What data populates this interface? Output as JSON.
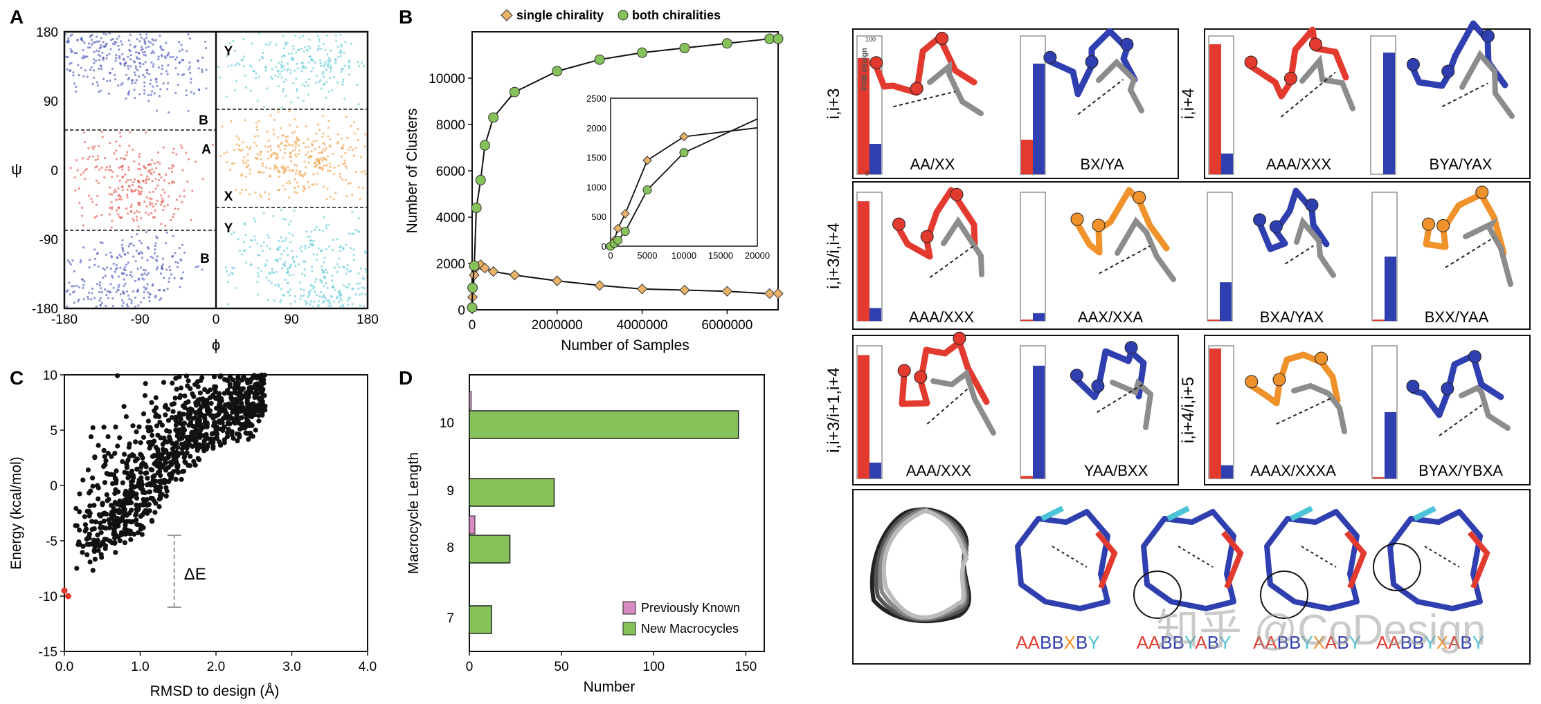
{
  "panels": {
    "a": "A",
    "b": "B",
    "c": "C",
    "d": "D"
  },
  "colors": {
    "red": "#e23a2e",
    "blue": "#2f3fb0",
    "orange": "#f0922b",
    "cyan": "#4cc3d6",
    "green": "#86c25a",
    "tan": "#e9b268",
    "pink": "#d98ac0",
    "gray": "#9a9a9a"
  },
  "panel_a": {
    "xlabel": "ϕ",
    "ylabel": "ψ",
    "xticks": [
      "-180",
      "-90",
      "0",
      "90",
      "180"
    ],
    "yticks": [
      "180",
      "90",
      "0",
      "-90",
      "-180"
    ],
    "regions_left": [
      "B",
      "A",
      "B"
    ],
    "regions_right": [
      "Y",
      "X",
      "Y"
    ]
  },
  "chart_data": [
    {
      "type": "line",
      "panel": "B",
      "xlabel": "Number of Samples",
      "ylabel": "Number of Clusters",
      "xlim": [
        0,
        7200000
      ],
      "ylim": [
        0,
        12000
      ],
      "xticks": [
        "0",
        "2000000",
        "4000000",
        "6000000"
      ],
      "yticks": [
        "0",
        "2000",
        "4000",
        "6000",
        "8000",
        "10000"
      ],
      "legend_position": "top",
      "series": [
        {
          "name": "single chirality",
          "x": [
            0,
            10000,
            50000,
            100000,
            200000,
            300000,
            500000,
            1000000,
            2000000,
            3000000,
            4000000,
            5000000,
            6000000,
            7000000,
            7200000
          ],
          "values": [
            100,
            550,
            1500,
            1850,
            1950,
            1800,
            1650,
            1500,
            1250,
            1050,
            900,
            850,
            800,
            700,
            700
          ]
        },
        {
          "name": "both chiralities",
          "x": [
            0,
            10000,
            50000,
            100000,
            200000,
            300000,
            500000,
            1000000,
            2000000,
            3000000,
            4000000,
            5000000,
            6000000,
            7000000,
            7200000
          ],
          "values": [
            100,
            950,
            1900,
            4400,
            5600,
            7100,
            8300,
            9400,
            10300,
            10800,
            11100,
            11300,
            11500,
            11700,
            11700
          ]
        }
      ],
      "inset": {
        "xlim": [
          0,
          20000
        ],
        "ylim": [
          0,
          2500
        ],
        "xticks": [
          "0",
          "5000",
          "10000",
          "15000",
          "20000"
        ],
        "yticks": [
          "0",
          "500",
          "1000",
          "1500",
          "2000",
          "2500"
        ],
        "series": [
          {
            "name": "single chirality",
            "x": [
              0,
              500,
              1000,
              2000,
              5000,
              10000,
              20000
            ],
            "values": [
              0,
              100,
              300,
              550,
              1450,
              1850,
              2000
            ]
          },
          {
            "name": "both chiralities",
            "x": [
              0,
              500,
              1000,
              2000,
              5000,
              10000,
              20000
            ],
            "values": [
              0,
              50,
              100,
              250,
              950,
              1580,
              2150
            ]
          }
        ]
      }
    },
    {
      "type": "scatter",
      "panel": "C",
      "xlabel": "RMSD to design (Å)",
      "ylabel": "Energy (kcal/mol)",
      "xlim": [
        0,
        4.0
      ],
      "ylim": [
        -15,
        10
      ],
      "xticks": [
        "0.0",
        "1.0",
        "2.0",
        "3.0",
        "4.0"
      ],
      "yticks": [
        "10",
        "5",
        "0",
        "-5",
        "-10",
        "-15"
      ],
      "annotation": "ΔE",
      "delta_e": {
        "x": 1.45,
        "from": -11,
        "to": -4.5
      },
      "design_points": [
        {
          "x": 0.0,
          "y": -9.5
        },
        {
          "x": 0.05,
          "y": -10.0
        }
      ]
    },
    {
      "type": "bar",
      "panel": "D",
      "orientation": "horizontal",
      "xlabel": "Number",
      "ylabel": "Macrocycle Length",
      "xlim": [
        0,
        160
      ],
      "xticks": [
        "0",
        "50",
        "100",
        "150"
      ],
      "categories": [
        "10",
        "9",
        "8",
        "7"
      ],
      "series": [
        {
          "name": "Previously Known",
          "values": [
            1,
            0,
            3,
            0
          ]
        },
        {
          "name": "New Macrocycles",
          "values": [
            146,
            46,
            22,
            12
          ]
        }
      ],
      "legend_position": "bottom-right"
    }
  ],
  "panel_e": {
    "rows": [
      {
        "label": "i,i+3",
        "groups": [
          {
            "bars": [
              {
                "pdb": 0.85,
                "design": 0.2
              }
            ],
            "motifs": [
              "AA/XX",
              "BX/YA"
            ],
            "bars2": {
              "pdb": 0.0,
              "design": 0.85
            }
          },
          {
            "label": "i,i+4",
            "motifs": [
              "AAA/XXX",
              "BYA/YAX"
            ]
          }
        ]
      },
      {
        "label": "i,i+3/i,i+4",
        "motifs": [
          "AAA/XXX",
          "AAX/XXA",
          "BXA/YAX",
          "BXX/YAA"
        ]
      },
      {
        "label": "i,i+3/i+1,i+4",
        "motifs": [
          "AAA/XXX",
          "YAA/BXX"
        ]
      },
      {
        "label": "i,i+4/i,i+5",
        "motifs": [
          "AAAX/XXXA",
          "BYAX/YBXA"
        ]
      }
    ],
    "row1_motifs": [
      "AA/XX",
      "BX/YA",
      "AAA/XXX",
      "BYA/YAX"
    ],
    "row1_labels": [
      "i,i+3",
      "i,i+4"
    ],
    "row2_label": "i,i+3/i,i+4",
    "row2_motifs": [
      "AAA/XXX",
      "AAX/XXA",
      "BXA/YAX",
      "BXX/YAA"
    ],
    "row3_labels": [
      "i,i+3/i+1,i+4",
      "i,i+4/i,i+5"
    ],
    "row3_motifs": [
      "AAA/XXX",
      "YAA/BXX",
      "AAAX/XXXA",
      "BYAX/YBXA"
    ],
    "bar_axis": {
      "top": "100",
      "bottom": "0",
      "legend": "PDB design"
    },
    "bar_levels": [
      {
        "pdb": 0.84,
        "design": 0.22
      },
      {
        "pdb": 0.25,
        "design": 0.8
      },
      {
        "pdb": 0.94,
        "design": 0.15
      },
      {
        "pdb": 0.0,
        "design": 0.88
      },
      {
        "pdb": 0.93,
        "design": 0.1
      },
      {
        "pdb": 0.01,
        "design": 0.06
      },
      {
        "pdb": 0.01,
        "design": 0.3
      },
      {
        "pdb": 0.01,
        "design": 0.5
      },
      {
        "pdb": 0.93,
        "design": 0.12
      },
      {
        "pdb": 0.02,
        "design": 0.85
      },
      {
        "pdb": 0.98,
        "design": 0.1
      },
      {
        "pdb": 0.01,
        "design": 0.5
      }
    ],
    "sequences": [
      {
        "letters": [
          [
            "A",
            "red"
          ],
          [
            "A",
            "red"
          ],
          [
            "B",
            "blue"
          ],
          [
            "B",
            "blue"
          ],
          [
            "X",
            "orange"
          ],
          [
            "B",
            "blue"
          ],
          [
            "Y",
            "cyan"
          ]
        ]
      },
      {
        "letters": [
          [
            "A",
            "red"
          ],
          [
            "A",
            "red"
          ],
          [
            "B",
            "blue"
          ],
          [
            "B",
            "blue"
          ],
          [
            "Y",
            "cyan"
          ],
          [
            "A",
            "red"
          ],
          [
            "B",
            "blue"
          ],
          [
            "Y",
            "cyan"
          ]
        ]
      },
      {
        "letters": [
          [
            "A",
            "red"
          ],
          [
            "A",
            "red"
          ],
          [
            "B",
            "blue"
          ],
          [
            "B",
            "blue"
          ],
          [
            "Y",
            "cyan"
          ],
          [
            "X",
            "orange"
          ],
          [
            "A",
            "red"
          ],
          [
            "B",
            "blue"
          ],
          [
            "Y",
            "cyan"
          ]
        ]
      },
      {
        "letters": [
          [
            "A",
            "red"
          ],
          [
            "A",
            "red"
          ],
          [
            "B",
            "blue"
          ],
          [
            "B",
            "blue"
          ],
          [
            "Y",
            "cyan"
          ],
          [
            "X",
            "orange"
          ],
          [
            "A",
            "red"
          ],
          [
            "B",
            "blue"
          ],
          [
            "Y",
            "cyan"
          ]
        ]
      }
    ]
  },
  "watermark": "知乎 @CoDesign"
}
